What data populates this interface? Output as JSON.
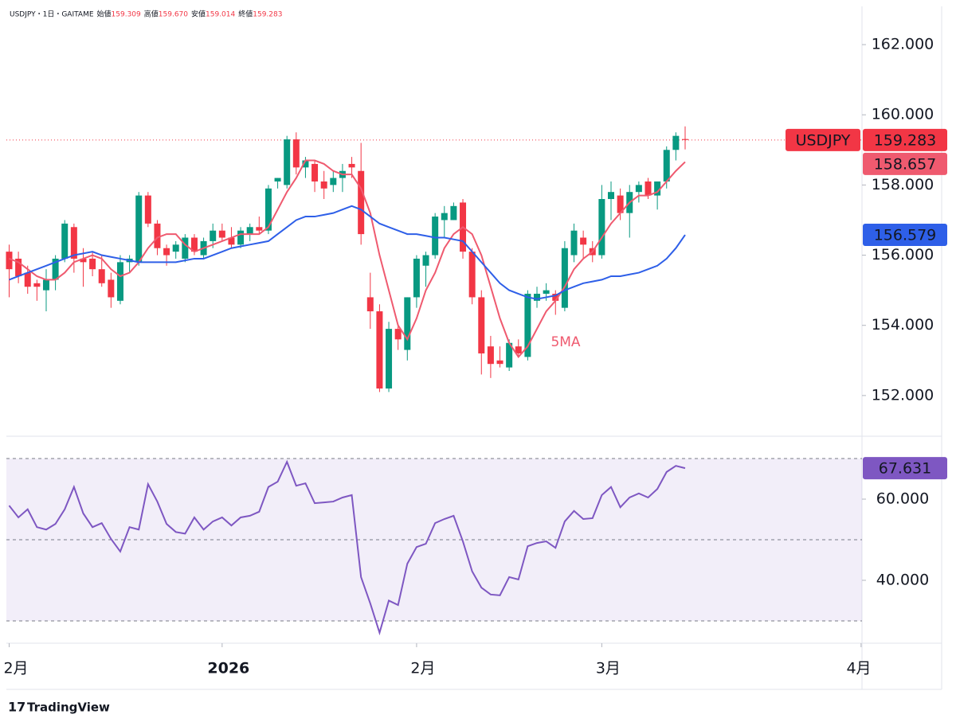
{
  "title": "USDJPY・1日・GAITAME",
  "header_ohlc_names": [
    "始値",
    "高値",
    "安値",
    "終値"
  ],
  "header_value_labels": [
    "159.309",
    "159.670",
    "159.014",
    "159.283"
  ],
  "symbol_tag": "USDJPY",
  "footer": "TradingView",
  "chart_data": [
    {
      "type": "candlestick",
      "xlim": [
        -0.3,
        92.1
      ],
      "xticks": [
        {
          "value": 0,
          "label": "2月"
        },
        {
          "value": 23,
          "label": "2026"
        },
        {
          "value": 44,
          "label": "2月"
        },
        {
          "value": 64,
          "label": "3月"
        },
        {
          "value": 92,
          "label": "4月"
        }
      ],
      "ylim": [
        150.84,
        163.09
      ],
      "yticks": [
        {
          "value": 152,
          "label": "152.000"
        },
        {
          "value": 154,
          "label": "154.000"
        },
        {
          "value": 156,
          "label": "156.000"
        },
        {
          "value": 158,
          "label": "158.000"
        },
        {
          "value": 160,
          "label": "160.000"
        },
        {
          "value": 162,
          "label": "162.000"
        }
      ],
      "up_color": "#089981",
      "down_color": "#f23645",
      "open": [
        156.1,
        155.9,
        155.5,
        155.2,
        155.0,
        155.3,
        155.9,
        156.8,
        155.9,
        155.9,
        155.6,
        155.3,
        154.7,
        155.8,
        155.8,
        157.7,
        156.9,
        156.2,
        156.1,
        155.9,
        156.5,
        156.0,
        156.4,
        156.7,
        156.5,
        156.3,
        156.6,
        156.8,
        156.7,
        158.1,
        158.0,
        159.3,
        158.5,
        158.6,
        158.1,
        158.0,
        158.2,
        158.6,
        158.4,
        154.8,
        154.4,
        152.2,
        153.9,
        153.3,
        154.8,
        155.7,
        156.0,
        157.0,
        157.0,
        157.5,
        156.1,
        154.8,
        153.4,
        153.0,
        152.8,
        153.4,
        153.1,
        154.7,
        154.9,
        154.9,
        154.5,
        156.0,
        156.5,
        156.2,
        156.0,
        157.6,
        157.7,
        157.2,
        157.8,
        158.1,
        157.7,
        158.1,
        159.0,
        159.309
      ],
      "high": [
        156.3,
        156.1,
        155.7,
        155.3,
        155.6,
        156.0,
        157.0,
        156.9,
        156.2,
        156.1,
        156.0,
        155.5,
        156.0,
        156.0,
        157.8,
        157.8,
        157.0,
        156.3,
        156.4,
        156.6,
        156.6,
        156.5,
        156.9,
        156.9,
        156.8,
        156.8,
        156.9,
        157.1,
        158.0,
        158.2,
        159.4,
        159.5,
        158.8,
        158.7,
        158.4,
        158.4,
        158.6,
        158.8,
        159.2,
        155.5,
        154.6,
        154.1,
        154.0,
        154.8,
        156.0,
        156.1,
        157.2,
        157.4,
        157.5,
        157.6,
        156.2,
        155.0,
        153.7,
        153.4,
        153.6,
        153.6,
        155.0,
        155.1,
        155.2,
        155.0,
        156.4,
        156.9,
        156.7,
        156.4,
        158.0,
        158.1,
        157.9,
        158.0,
        158.1,
        158.2,
        158.1,
        159.1,
        159.5,
        159.67
      ],
      "low": [
        154.8,
        155.2,
        154.9,
        154.7,
        154.4,
        155.0,
        155.8,
        155.5,
        155.1,
        155.4,
        155.1,
        154.5,
        154.6,
        155.5,
        155.7,
        156.8,
        156.0,
        155.7,
        155.9,
        155.8,
        156.0,
        155.9,
        156.2,
        156.4,
        156.2,
        156.2,
        156.4,
        156.6,
        156.6,
        157.9,
        157.9,
        158.3,
        158.2,
        157.8,
        157.6,
        157.8,
        157.8,
        158.2,
        156.3,
        153.9,
        152.1,
        152.1,
        153.3,
        153.0,
        154.5,
        155.1,
        155.9,
        156.5,
        157.0,
        155.9,
        154.6,
        152.6,
        152.5,
        152.8,
        152.7,
        153.1,
        153.0,
        154.5,
        154.7,
        154.3,
        154.4,
        155.8,
        155.9,
        155.8,
        155.9,
        157.0,
        157.0,
        156.5,
        157.5,
        157.6,
        157.3,
        157.9,
        158.7,
        159.014
      ],
      "close": [
        155.6,
        155.4,
        155.1,
        155.1,
        155.3,
        155.9,
        156.9,
        155.9,
        155.8,
        155.6,
        155.2,
        154.8,
        155.8,
        155.9,
        157.7,
        156.9,
        156.2,
        156.0,
        156.3,
        156.5,
        156.1,
        156.4,
        156.7,
        156.5,
        156.3,
        156.7,
        156.8,
        156.7,
        157.9,
        158.2,
        159.3,
        158.5,
        158.7,
        158.1,
        157.9,
        158.2,
        158.4,
        158.5,
        156.6,
        154.4,
        152.2,
        153.9,
        153.6,
        154.8,
        155.9,
        156.0,
        157.1,
        157.2,
        157.4,
        156.1,
        154.8,
        153.2,
        152.9,
        152.9,
        153.5,
        153.2,
        154.9,
        154.9,
        155.0,
        154.7,
        156.2,
        156.7,
        156.3,
        156.0,
        157.6,
        157.8,
        157.2,
        157.8,
        158.0,
        157.7,
        158.1,
        159.0,
        159.4,
        159.283
      ],
      "series": [
        {
          "name": "5MA",
          "color": "#ef5a6f",
          "values": [
            155.9,
            155.8,
            155.6,
            155.4,
            155.3,
            155.3,
            155.5,
            155.8,
            155.9,
            156.0,
            155.9,
            155.6,
            155.4,
            155.5,
            155.8,
            156.2,
            156.5,
            156.6,
            156.6,
            156.3,
            156.1,
            156.2,
            156.3,
            156.4,
            156.5,
            156.6,
            156.6,
            156.6,
            156.8,
            157.3,
            157.8,
            158.2,
            158.7,
            158.7,
            158.6,
            158.4,
            158.3,
            158.3,
            157.9,
            157.2,
            156.0,
            155.0,
            154.0,
            153.6,
            154.2,
            155.0,
            155.5,
            156.2,
            156.6,
            156.8,
            156.6,
            156.0,
            155.1,
            154.2,
            153.5,
            153.1,
            153.4,
            153.9,
            154.4,
            154.7,
            155.1,
            155.6,
            155.9,
            156.1,
            156.5,
            156.9,
            157.2,
            157.5,
            157.7,
            157.7,
            157.8,
            158.1,
            158.4,
            158.657
          ]
        },
        {
          "color": "#2e5fe8",
          "values": [
            155.3,
            155.4,
            155.5,
            155.6,
            155.7,
            155.8,
            155.9,
            156.0,
            156.05,
            156.1,
            156.0,
            155.95,
            155.9,
            155.85,
            155.8,
            155.8,
            155.8,
            155.8,
            155.8,
            155.85,
            155.9,
            155.9,
            156.0,
            156.1,
            156.2,
            156.25,
            156.3,
            156.35,
            156.4,
            156.6,
            156.8,
            157.0,
            157.1,
            157.1,
            157.15,
            157.2,
            157.3,
            157.4,
            157.3,
            157.1,
            156.9,
            156.8,
            156.7,
            156.6,
            156.6,
            156.55,
            156.5,
            156.5,
            156.45,
            156.4,
            156.1,
            155.8,
            155.5,
            155.2,
            155.0,
            154.9,
            154.8,
            154.75,
            154.8,
            154.85,
            155.0,
            155.1,
            155.2,
            155.25,
            155.3,
            155.4,
            155.4,
            155.45,
            155.5,
            155.6,
            155.7,
            155.9,
            156.2,
            156.579
          ]
        }
      ],
      "price_line": true
    },
    {
      "type": "line",
      "xlim": [
        -0.3,
        92.1
      ],
      "ylim": [
        24.5,
        75.5
      ],
      "yticks": [
        {
          "value": 40,
          "label": "40.000"
        },
        {
          "value": 60,
          "label": "60.000"
        }
      ],
      "levels": [
        70,
        50,
        30
      ],
      "color": "#7e57c2",
      "values": [
        58.4,
        55.5,
        57.5,
        53.1,
        52.5,
        53.9,
        57.5,
        63,
        56.5,
        53.1,
        54.1,
        50.2,
        47.1,
        53.1,
        52.5,
        63.7,
        59.4,
        53.9,
        51.9,
        51.5,
        55.5,
        52.5,
        54.5,
        55.5,
        53.5,
        55.5,
        55.9,
        56.9,
        63,
        64.3,
        69.2,
        63.3,
        63.9,
        59,
        59.2,
        59.4,
        60.4,
        61,
        40.8,
        34.3,
        27.1,
        35,
        33.9,
        44.1,
        48.2,
        49,
        54.1,
        55.1,
        55.9,
        49.6,
        42.2,
        38.2,
        36.5,
        36.3,
        40.8,
        40.2,
        48.4,
        49.2,
        49.6,
        48,
        54.5,
        57.1,
        55.1,
        55.3,
        61,
        63,
        58,
        60.4,
        61.4,
        60.4,
        62.5,
        66.7,
        68.2,
        67.631
      ]
    }
  ]
}
